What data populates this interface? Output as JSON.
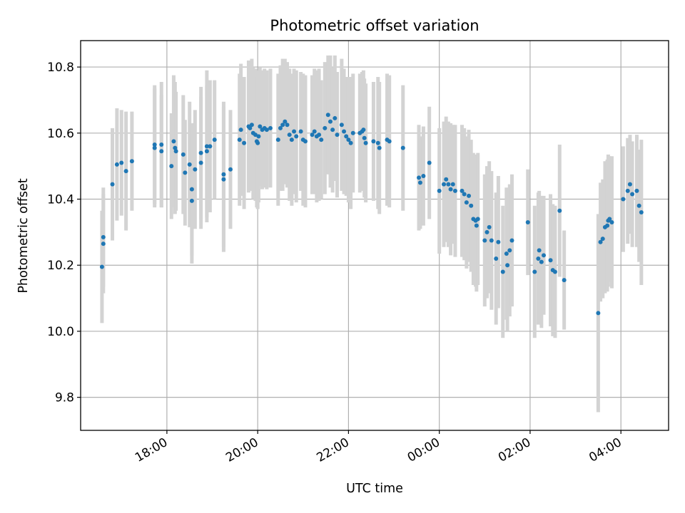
{
  "chart_data": {
    "type": "scatter",
    "title": "Photometric offset variation",
    "xlabel": "UTC time",
    "ylabel": "Photometric offset",
    "x_unit": "hours (UTC, continuing past midnight)",
    "xlim": [
      16.1,
      29.05
    ],
    "ylim": [
      9.7,
      10.88
    ],
    "x_ticks": [
      18,
      20,
      22,
      24,
      26,
      28
    ],
    "x_tick_labels": [
      "18:00",
      "20:00",
      "22:00",
      "00:00",
      "02:00",
      "04:00"
    ],
    "y_ticks": [
      9.8,
      10.0,
      10.2,
      10.4,
      10.6,
      10.8
    ],
    "y_tick_labels": [
      "9.8",
      "10.0",
      "10.2",
      "10.4",
      "10.6",
      "10.8"
    ],
    "grid": true,
    "colors": {
      "points": "#1f77b4",
      "error_bars": "#d3d3d3"
    },
    "points": [
      [
        16.57,
        10.195,
        0.17
      ],
      [
        16.6,
        10.265,
        0.15
      ],
      [
        16.6,
        10.285,
        0.15
      ],
      [
        16.8,
        10.445,
        0.17
      ],
      [
        16.9,
        10.505,
        0.17
      ],
      [
        17.0,
        10.51,
        0.16
      ],
      [
        17.1,
        10.485,
        0.18
      ],
      [
        17.23,
        10.515,
        0.15
      ],
      [
        17.73,
        10.565,
        0.18
      ],
      [
        17.73,
        10.555,
        0.18
      ],
      [
        17.88,
        10.565,
        0.19
      ],
      [
        17.88,
        10.545,
        0.17
      ],
      [
        18.1,
        10.5,
        0.16
      ],
      [
        18.15,
        10.575,
        0.2
      ],
      [
        18.18,
        10.555,
        0.2
      ],
      [
        18.2,
        10.545,
        0.18
      ],
      [
        18.36,
        10.535,
        0.18
      ],
      [
        18.4,
        10.48,
        0.16
      ],
      [
        18.5,
        10.505,
        0.19
      ],
      [
        18.55,
        10.395,
        0.19
      ],
      [
        18.55,
        10.43,
        0.2
      ],
      [
        18.62,
        10.49,
        0.18
      ],
      [
        18.75,
        10.54,
        0.2
      ],
      [
        18.75,
        10.51,
        0.2
      ],
      [
        18.88,
        10.56,
        0.23
      ],
      [
        18.88,
        10.545,
        0.2
      ],
      [
        18.95,
        10.56,
        0.2
      ],
      [
        19.05,
        10.58,
        0.18
      ],
      [
        19.25,
        10.475,
        0.22
      ],
      [
        19.25,
        10.46,
        0.22
      ],
      [
        19.4,
        10.49,
        0.18
      ],
      [
        19.6,
        10.58,
        0.2
      ],
      [
        19.63,
        10.61,
        0.2
      ],
      [
        19.7,
        10.57,
        0.2
      ],
      [
        19.8,
        10.62,
        0.2
      ],
      [
        19.83,
        10.615,
        0.18
      ],
      [
        19.87,
        10.625,
        0.2
      ],
      [
        19.9,
        10.6,
        0.2
      ],
      [
        19.95,
        10.595,
        0.2
      ],
      [
        19.98,
        10.575,
        0.2
      ],
      [
        20.0,
        10.57,
        0.2
      ],
      [
        20.02,
        10.59,
        0.2
      ],
      [
        20.05,
        10.62,
        0.18
      ],
      [
        20.1,
        10.61,
        0.18
      ],
      [
        20.15,
        10.615,
        0.18
      ],
      [
        20.2,
        10.61,
        0.18
      ],
      [
        20.28,
        10.615,
        0.18
      ],
      [
        20.45,
        10.58,
        0.2
      ],
      [
        20.5,
        10.615,
        0.19
      ],
      [
        20.55,
        10.625,
        0.2
      ],
      [
        20.6,
        10.635,
        0.19
      ],
      [
        20.65,
        10.625,
        0.19
      ],
      [
        20.7,
        10.595,
        0.2
      ],
      [
        20.75,
        10.58,
        0.2
      ],
      [
        20.8,
        10.605,
        0.19
      ],
      [
        20.85,
        10.59,
        0.2
      ],
      [
        20.95,
        10.605,
        0.18
      ],
      [
        21.0,
        10.58,
        0.2
      ],
      [
        21.05,
        10.575,
        0.2
      ],
      [
        21.2,
        10.595,
        0.18
      ],
      [
        21.25,
        10.605,
        0.19
      ],
      [
        21.3,
        10.59,
        0.2
      ],
      [
        21.35,
        10.595,
        0.2
      ],
      [
        21.4,
        10.58,
        0.18
      ],
      [
        21.48,
        10.615,
        0.2
      ],
      [
        21.55,
        10.655,
        0.18
      ],
      [
        21.6,
        10.635,
        0.2
      ],
      [
        21.65,
        10.61,
        0.19
      ],
      [
        21.7,
        10.645,
        0.19
      ],
      [
        21.75,
        10.595,
        0.19
      ],
      [
        21.85,
        10.625,
        0.2
      ],
      [
        21.9,
        10.605,
        0.19
      ],
      [
        21.95,
        10.59,
        0.18
      ],
      [
        22.0,
        10.58,
        0.19
      ],
      [
        22.05,
        10.57,
        0.2
      ],
      [
        22.1,
        10.6,
        0.18
      ],
      [
        22.25,
        10.6,
        0.18
      ],
      [
        22.3,
        10.605,
        0.18
      ],
      [
        22.33,
        10.61,
        0.18
      ],
      [
        22.35,
        10.585,
        0.18
      ],
      [
        22.38,
        10.57,
        0.18
      ],
      [
        22.55,
        10.575,
        0.18
      ],
      [
        22.65,
        10.57,
        0.2
      ],
      [
        22.68,
        10.555,
        0.2
      ],
      [
        22.85,
        10.58,
        0.2
      ],
      [
        22.9,
        10.575,
        0.2
      ],
      [
        23.2,
        10.555,
        0.19
      ],
      [
        23.55,
        10.465,
        0.16
      ],
      [
        23.58,
        10.45,
        0.14
      ],
      [
        23.65,
        10.47,
        0.15
      ],
      [
        23.78,
        10.51,
        0.17
      ],
      [
        24.0,
        10.425,
        0.19
      ],
      [
        24.1,
        10.445,
        0.19
      ],
      [
        24.15,
        10.46,
        0.19
      ],
      [
        24.2,
        10.445,
        0.19
      ],
      [
        24.25,
        10.43,
        0.2
      ],
      [
        24.3,
        10.445,
        0.18
      ],
      [
        24.35,
        10.425,
        0.2
      ],
      [
        24.5,
        10.425,
        0.2
      ],
      [
        24.55,
        10.415,
        0.2
      ],
      [
        24.6,
        10.39,
        0.2
      ],
      [
        24.65,
        10.41,
        0.2
      ],
      [
        24.7,
        10.38,
        0.2
      ],
      [
        24.75,
        10.34,
        0.2
      ],
      [
        24.8,
        10.335,
        0.2
      ],
      [
        24.82,
        10.32,
        0.2
      ],
      [
        24.85,
        10.34,
        0.2
      ],
      [
        25.0,
        10.275,
        0.2
      ],
      [
        25.05,
        10.3,
        0.2
      ],
      [
        25.1,
        10.315,
        0.2
      ],
      [
        25.15,
        10.275,
        0.21
      ],
      [
        25.25,
        10.22,
        0.2
      ],
      [
        25.3,
        10.27,
        0.2
      ],
      [
        25.4,
        10.18,
        0.2
      ],
      [
        25.48,
        10.235,
        0.2
      ],
      [
        25.5,
        10.2,
        0.2
      ],
      [
        25.55,
        10.245,
        0.2
      ],
      [
        25.6,
        10.275,
        0.2
      ],
      [
        25.95,
        10.33,
        0.16
      ],
      [
        26.1,
        10.18,
        0.2
      ],
      [
        26.18,
        10.22,
        0.2
      ],
      [
        26.2,
        10.245,
        0.18
      ],
      [
        26.25,
        10.21,
        0.2
      ],
      [
        26.3,
        10.23,
        0.18
      ],
      [
        26.45,
        10.215,
        0.2
      ],
      [
        26.5,
        10.185,
        0.2
      ],
      [
        26.55,
        10.18,
        0.2
      ],
      [
        26.65,
        10.365,
        0.2
      ],
      [
        26.75,
        10.155,
        0.15
      ],
      [
        27.5,
        10.055,
        0.3
      ],
      [
        27.55,
        10.27,
        0.18
      ],
      [
        27.6,
        10.28,
        0.18
      ],
      [
        27.65,
        10.315,
        0.2
      ],
      [
        27.7,
        10.32,
        0.2
      ],
      [
        27.72,
        10.335,
        0.2
      ],
      [
        27.75,
        10.34,
        0.19
      ],
      [
        27.8,
        10.33,
        0.2
      ],
      [
        28.05,
        10.4,
        0.16
      ],
      [
        28.15,
        10.425,
        0.16
      ],
      [
        28.2,
        10.445,
        0.15
      ],
      [
        28.25,
        10.415,
        0.16
      ],
      [
        28.35,
        10.425,
        0.17
      ],
      [
        28.4,
        10.38,
        0.17
      ],
      [
        28.45,
        10.36,
        0.22
      ]
    ]
  }
}
